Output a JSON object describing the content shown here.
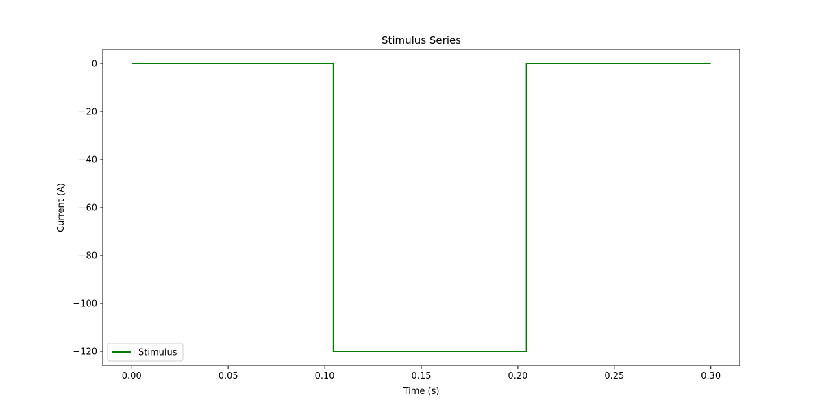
{
  "chart_data": {
    "type": "line",
    "title": "Stimulus Series",
    "xlabel": "Time (s)",
    "ylabel": "Current (A)",
    "xlim": [
      -0.015,
      0.315
    ],
    "ylim": [
      -126,
      6
    ],
    "x_ticks": [
      0.0,
      0.05,
      0.1,
      0.15,
      0.2,
      0.25,
      0.3
    ],
    "x_tick_labels": [
      "0.00",
      "0.05",
      "0.10",
      "0.15",
      "0.20",
      "0.25",
      "0.30"
    ],
    "y_ticks": [
      0,
      -20,
      -40,
      -60,
      -80,
      -100,
      -120
    ],
    "y_tick_labels": [
      "0",
      "−20",
      "−40",
      "−60",
      "−80",
      "−100",
      "−120"
    ],
    "grid": false,
    "legend_position": "lower-left",
    "series": [
      {
        "name": "Stimulus",
        "color": "#008000",
        "step": true,
        "x": [
          0.0,
          0.1045,
          0.1045,
          0.2045,
          0.2045,
          0.3
        ],
        "y": [
          0,
          0,
          -120,
          -120,
          0,
          0
        ]
      }
    ]
  }
}
